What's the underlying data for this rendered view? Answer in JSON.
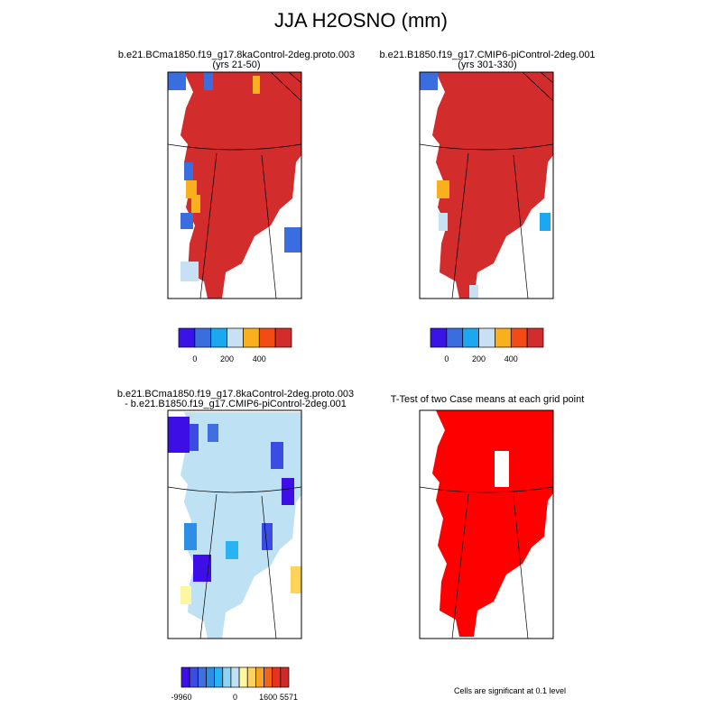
{
  "title": "JJA H2OSNO (mm)",
  "panels": [
    {
      "title": [
        "b.e21.BCma1850.f19_g17.8kaControl-2deg.proto.003",
        "(yrs 21-50)"
      ]
    },
    {
      "title": [
        "b.e21.B1850.f19_g17.CMIP6-piControl-2deg.001",
        "(yrs 301-330)"
      ]
    },
    {
      "title": [
        "b.e21.BCma1850.f19_g17.8kaControl-2deg.proto.003",
        "- b.e21.B1850.f19_g17.CMIP6-piControl-2deg.001"
      ]
    },
    {
      "title": [
        "T-Test of two Case means at each grid point"
      ]
    }
  ],
  "colorbars": [
    {
      "colors": [
        "#3a13e6",
        "#3a6ddf",
        "#1ba8f0",
        "#c8e0f4",
        "#f8b01e",
        "#f44a13",
        "#d22c2c"
      ],
      "labels": [
        "0",
        "200",
        "400"
      ]
    },
    {
      "colors": [
        "#3a13e6",
        "#3a6ddf",
        "#1ba8f0",
        "#c8e0f4",
        "#f8b01e",
        "#f44a13",
        "#d22c2c"
      ],
      "labels": [
        "0",
        "200",
        "400"
      ]
    },
    {
      "colors": [
        "#3d0fe6",
        "#3a4ce4",
        "#3f6fe0",
        "#2d8ee8",
        "#2ab3f2",
        "#8fd3f0",
        "#bfe1f4",
        "#fff7a0",
        "#ffd25a",
        "#f7a323",
        "#f0641c",
        "#e8331c",
        "#cf2a2a"
      ],
      "labels": [
        "-9960",
        "0",
        "1600",
        "5571"
      ]
    }
  ],
  "note": "Cells are significant at 0.1 level"
}
